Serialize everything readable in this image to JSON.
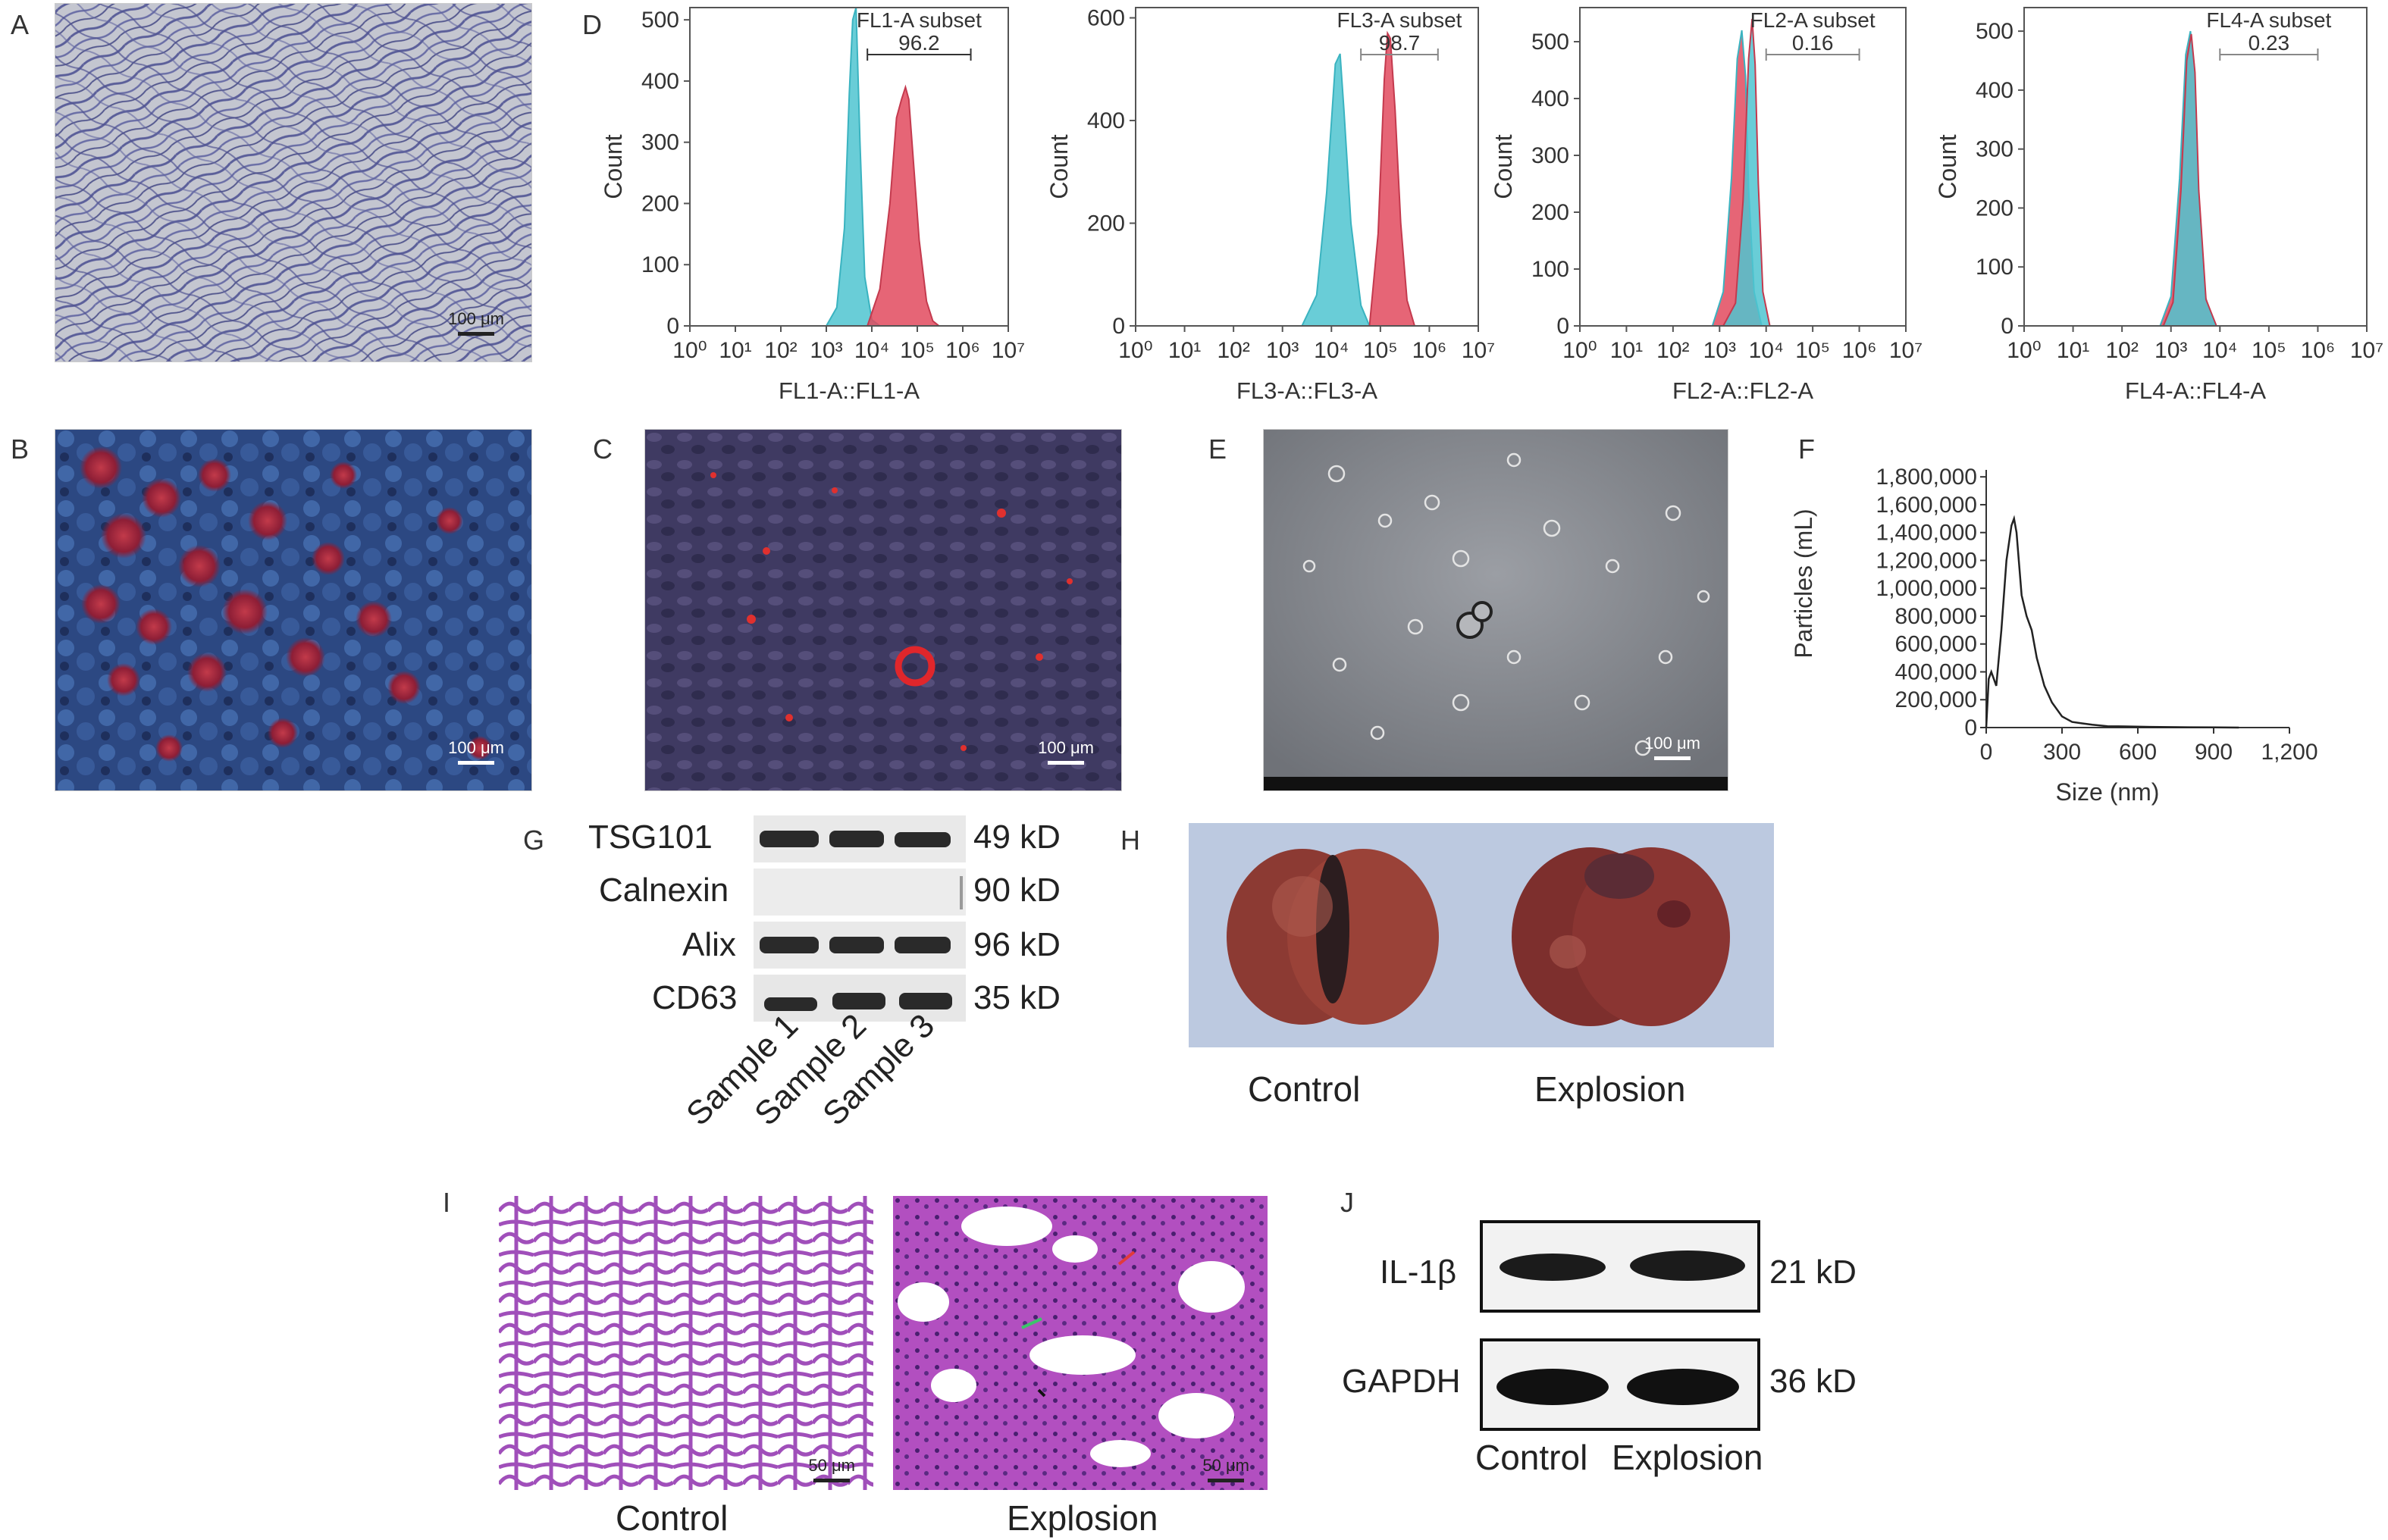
{
  "panels": {
    "A": {
      "letter": "A",
      "scale": "100 μm"
    },
    "B": {
      "letter": "B",
      "scale": "100 μm"
    },
    "C": {
      "letter": "C",
      "scale": "100 μm"
    },
    "D": {
      "letter": "D"
    },
    "E": {
      "letter": "E",
      "scale": "100 μm"
    },
    "F": {
      "letter": "F"
    },
    "G": {
      "letter": "G",
      "proteins": [
        "TSG101",
        "Calnexin",
        "Alix",
        "CD63"
      ],
      "weights": [
        "49 kD",
        "90 kD",
        "96 kD",
        "35 kD"
      ],
      "samples": [
        "Sample 1",
        "Sample 2",
        "Sample 3"
      ]
    },
    "H": {
      "letter": "H",
      "conditions": [
        "Control",
        "Explosion"
      ]
    },
    "I": {
      "letter": "I",
      "conditions": [
        "Control",
        "Explosion"
      ],
      "scale": "50 μm"
    },
    "J": {
      "letter": "J",
      "proteins": [
        "IL-1β",
        "GAPDH"
      ],
      "weights": [
        "21 kD",
        "36 kD"
      ],
      "conditions": [
        "Control",
        "Explosion"
      ]
    }
  },
  "chart_data": [
    {
      "type": "area",
      "panel": "D1",
      "gate_label": "FL1-A subset",
      "gate_value": "96.2",
      "xlabel": "FL1-A::FL1-A",
      "ylabel": "Count",
      "xscale": "log",
      "xlim": [
        1,
        10000000
      ],
      "xticks": [
        "10⁰",
        "10¹",
        "10²",
        "10³",
        "10⁴",
        "10⁵",
        "10⁶",
        "10⁷"
      ],
      "ylim": [
        0,
        520
      ],
      "yticks": [
        0,
        100,
        200,
        300,
        400,
        500
      ],
      "gate_range": [
        8000,
        1500000
      ],
      "series": [
        {
          "color": "#4fc4d0",
          "x": [
            1000,
            1700,
            2500,
            3200,
            3800,
            4500,
            5500,
            7000,
            10000,
            15000
          ],
          "y": [
            0,
            30,
            160,
            380,
            500,
            520,
            300,
            80,
            10,
            0
          ]
        },
        {
          "color": "#e24a5e",
          "x": [
            8000,
            15000,
            25000,
            35000,
            45000,
            55000,
            65000,
            80000,
            110000,
            160000,
            220000,
            300000
          ],
          "y": [
            0,
            60,
            200,
            340,
            370,
            390,
            370,
            280,
            140,
            40,
            8,
            0
          ]
        }
      ]
    },
    {
      "type": "area",
      "panel": "D2",
      "gate_label": "FL3-A subset",
      "gate_value": "98.7",
      "xlabel": "FL3-A::FL3-A",
      "ylabel": "Count",
      "xscale": "log",
      "xlim": [
        1,
        10000000
      ],
      "xticks": [
        "10⁰",
        "10¹",
        "10²",
        "10³",
        "10⁴",
        "10⁵",
        "10⁶",
        "10⁷"
      ],
      "ylim": [
        0,
        620
      ],
      "yticks": [
        0,
        200,
        400,
        600
      ],
      "gate_range": [
        40000,
        1500000
      ],
      "series": [
        {
          "color": "#4fc4d0",
          "x": [
            2500,
            5000,
            8000,
            12000,
            15000,
            18000,
            25000,
            40000,
            60000
          ],
          "y": [
            0,
            60,
            260,
            510,
            530,
            420,
            200,
            40,
            0
          ]
        },
        {
          "color": "#e24a5e",
          "x": [
            60000,
            90000,
            120000,
            140000,
            160000,
            200000,
            260000,
            350000,
            500000
          ],
          "y": [
            0,
            180,
            480,
            570,
            560,
            420,
            200,
            50,
            0
          ]
        }
      ]
    },
    {
      "type": "area",
      "panel": "D3",
      "gate_label": "FL2-A subset",
      "gate_value": "0.16",
      "xlabel": "FL2-A::FL2-A",
      "ylabel": "Count",
      "xscale": "log",
      "xlim": [
        1,
        10000000
      ],
      "xticks": [
        "10⁰",
        "10¹",
        "10²",
        "10³",
        "10⁴",
        "10⁵",
        "10⁶",
        "10⁷"
      ],
      "ylim": [
        0,
        560
      ],
      "yticks": [
        0,
        100,
        200,
        300,
        400,
        500
      ],
      "gate_range": [
        10000,
        1000000
      ],
      "series": [
        {
          "color": "#e24a5e",
          "x": [
            700,
            1200,
            1800,
            2400,
            3000,
            3600,
            4200,
            5500,
            8000
          ],
          "y": [
            0,
            60,
            260,
            470,
            520,
            440,
            240,
            60,
            0
          ]
        },
        {
          "color": "#4fc4d0",
          "x": [
            1200,
            2200,
            3200,
            4200,
            5000,
            5800,
            6800,
            8500,
            12000
          ],
          "y": [
            0,
            40,
            220,
            470,
            540,
            460,
            250,
            60,
            0
          ]
        }
      ]
    },
    {
      "type": "area",
      "panel": "D4",
      "gate_label": "FL4-A subset",
      "gate_value": "0.23",
      "xlabel": "FL4-A::FL4-A",
      "ylabel": "Count",
      "xscale": "log",
      "xlim": [
        1,
        10000000
      ],
      "xticks": [
        "10⁰",
        "10¹",
        "10²",
        "10³",
        "10⁴",
        "10⁵",
        "10⁶",
        "10⁷"
      ],
      "ylim": [
        0,
        540
      ],
      "yticks": [
        0,
        100,
        200,
        300,
        400,
        500
      ],
      "gate_range": [
        10000,
        1000000
      ],
      "series": [
        {
          "color": "#e24a5e",
          "x": [
            600,
            1000,
            1500,
            2000,
            2500,
            3000,
            3600,
            5000,
            8000
          ],
          "y": [
            0,
            50,
            250,
            460,
            500,
            440,
            240,
            50,
            0
          ]
        },
        {
          "color": "#4fc4d0",
          "x": [
            700,
            1100,
            1600,
            2100,
            2600,
            3100,
            3700,
            5200,
            8500
          ],
          "y": [
            0,
            40,
            230,
            450,
            495,
            430,
            230,
            45,
            0
          ]
        }
      ]
    },
    {
      "type": "line",
      "panel": "F",
      "xlabel": "Size (nm)",
      "ylabel": "Particles (mL)",
      "xlim": [
        0,
        1200
      ],
      "ylim": [
        0,
        1850000
      ],
      "xticks": [
        "0",
        "300",
        "600",
        "900",
        "1,200"
      ],
      "yticks": [
        "0",
        "200,000",
        "400,000",
        "600,000",
        "800,000",
        "1,000,000",
        "1,200,000",
        "1,400,000",
        "1,600,000",
        "1,800,000"
      ],
      "x": [
        0,
        10,
        20,
        40,
        60,
        80,
        100,
        110,
        120,
        140,
        160,
        180,
        200,
        230,
        260,
        300,
        340,
        380,
        420,
        480,
        550,
        650,
        800,
        1000
      ],
      "y": [
        0,
        350000,
        400000,
        300000,
        700000,
        1200000,
        1450000,
        1500000,
        1400000,
        950000,
        800000,
        700000,
        500000,
        300000,
        180000,
        80000,
        40000,
        30000,
        20000,
        10000,
        8000,
        5000,
        2000,
        0
      ]
    }
  ]
}
